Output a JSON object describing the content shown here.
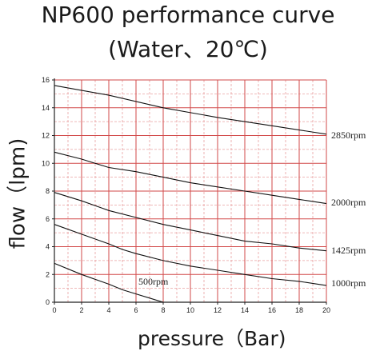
{
  "title_line1": "NP600 performance curve",
  "title_line2": "(Water、20℃)",
  "chart_data": {
    "type": "line",
    "title": "NP600 performance curve (Water、20℃)",
    "xlabel": "pressure（Bar)",
    "ylabel": "flow（lpm)",
    "xlim": [
      0,
      20
    ],
    "ylim": [
      0,
      16
    ],
    "xticks": [
      0,
      2,
      4,
      6,
      8,
      10,
      12,
      14,
      16,
      18,
      20
    ],
    "yticks": [
      0,
      2,
      4,
      6,
      8,
      10,
      12,
      14,
      16
    ],
    "grid": true,
    "colors": {
      "major_grid": "#d24a4a",
      "minor_grid": "#e8a0a0",
      "axis": "#222222",
      "curve": "#111111"
    },
    "series": [
      {
        "name": "2850rpm",
        "x": [
          0,
          4,
          8,
          12,
          16,
          20
        ],
        "y": [
          15.6,
          14.9,
          14.0,
          13.3,
          12.7,
          12.1
        ]
      },
      {
        "name": "2000rpm",
        "x": [
          0,
          2,
          4,
          6,
          8,
          10,
          12,
          14,
          16,
          18,
          20
        ],
        "y": [
          10.8,
          10.3,
          9.7,
          9.4,
          9.0,
          8.6,
          8.3,
          8.0,
          7.7,
          7.4,
          7.1
        ]
      },
      {
        "name": "1425rpm",
        "x": [
          0,
          2,
          4,
          6,
          8,
          10,
          12,
          14,
          16,
          18,
          20
        ],
        "y": [
          7.9,
          7.3,
          6.6,
          6.1,
          5.6,
          5.2,
          4.8,
          4.4,
          4.2,
          3.9,
          3.7
        ]
      },
      {
        "name": "1000rpm",
        "x": [
          0,
          2,
          4,
          5,
          6,
          8,
          10,
          12,
          14,
          16,
          18,
          20
        ],
        "y": [
          5.6,
          4.9,
          4.2,
          3.8,
          3.5,
          3.0,
          2.6,
          2.3,
          2.0,
          1.7,
          1.5,
          1.2
        ]
      },
      {
        "name": "500rpm",
        "x": [
          0,
          2,
          4,
          5,
          6,
          7,
          8
        ],
        "y": [
          2.8,
          2.0,
          1.3,
          0.9,
          0.6,
          0.3,
          0.0
        ]
      }
    ]
  }
}
